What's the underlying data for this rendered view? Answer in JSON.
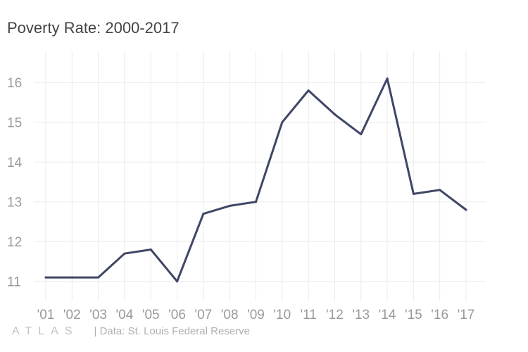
{
  "chart_data": {
    "type": "line",
    "title": "Poverty Rate: 2000-2017",
    "xlabel": "",
    "ylabel": "",
    "categories": [
      "'01",
      "'02",
      "'03",
      "'04",
      "'05",
      "'06",
      "'07",
      "'08",
      "'09",
      "'10",
      "'11",
      "'12",
      "'13",
      "'14",
      "'15",
      "'16",
      "'17"
    ],
    "series": [
      {
        "values": [
          11.1,
          11.1,
          11.1,
          11.7,
          11.8,
          11.0,
          12.7,
          12.9,
          13.0,
          15.0,
          15.8,
          15.2,
          14.7,
          16.1,
          13.2,
          13.3,
          12.8
        ]
      }
    ],
    "yticks": [
      11,
      12,
      13,
      14,
      15,
      16
    ],
    "ylim": [
      10.5,
      16.8
    ],
    "grid": true,
    "line_color": "#3f4666",
    "grid_color": "#ebebeb"
  },
  "footer": {
    "logo": "ATLAS",
    "source": "| Data: St. Louis Federal Reserve"
  }
}
